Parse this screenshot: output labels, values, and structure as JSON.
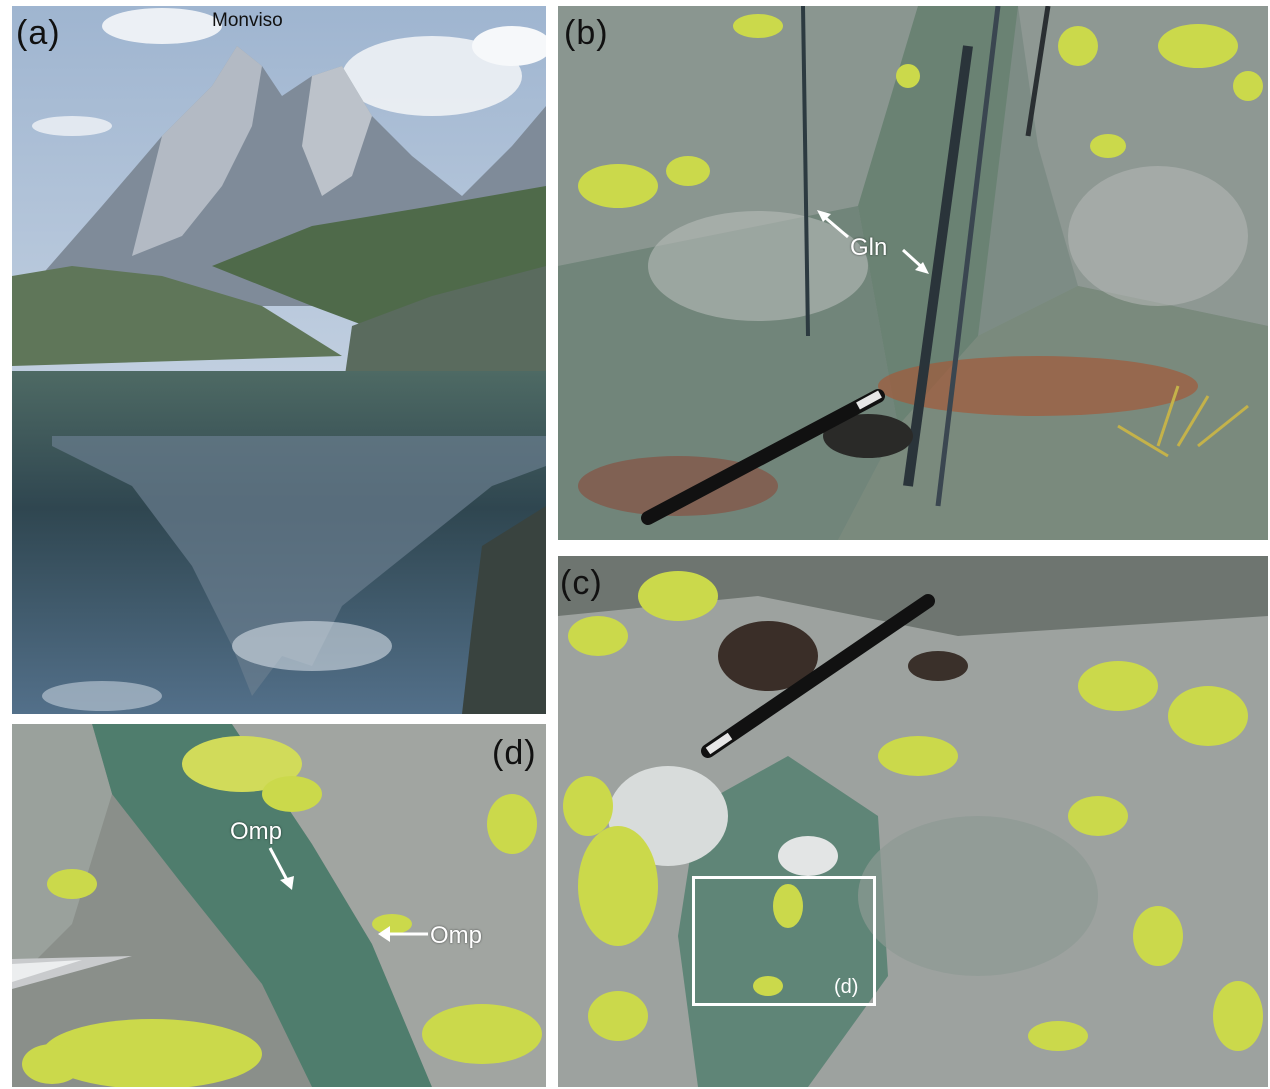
{
  "panels": {
    "a": {
      "letter": "(a)",
      "peak_label": "Monviso"
    },
    "b": {
      "letter": "(b)",
      "label": "Gln"
    },
    "c": {
      "letter": "(c)",
      "inset_label": "(d)"
    },
    "d": {
      "letter": "(d)",
      "label_1": "Omp",
      "label_2": "Omp"
    }
  },
  "colors": {
    "sky": "#c9d6e6",
    "water": "#3f5568",
    "rock_green": "#6e8a78",
    "rock_grey": "#9a9f9d",
    "lichen": "#c9d94e",
    "omphacite": "#3f7a6a"
  }
}
